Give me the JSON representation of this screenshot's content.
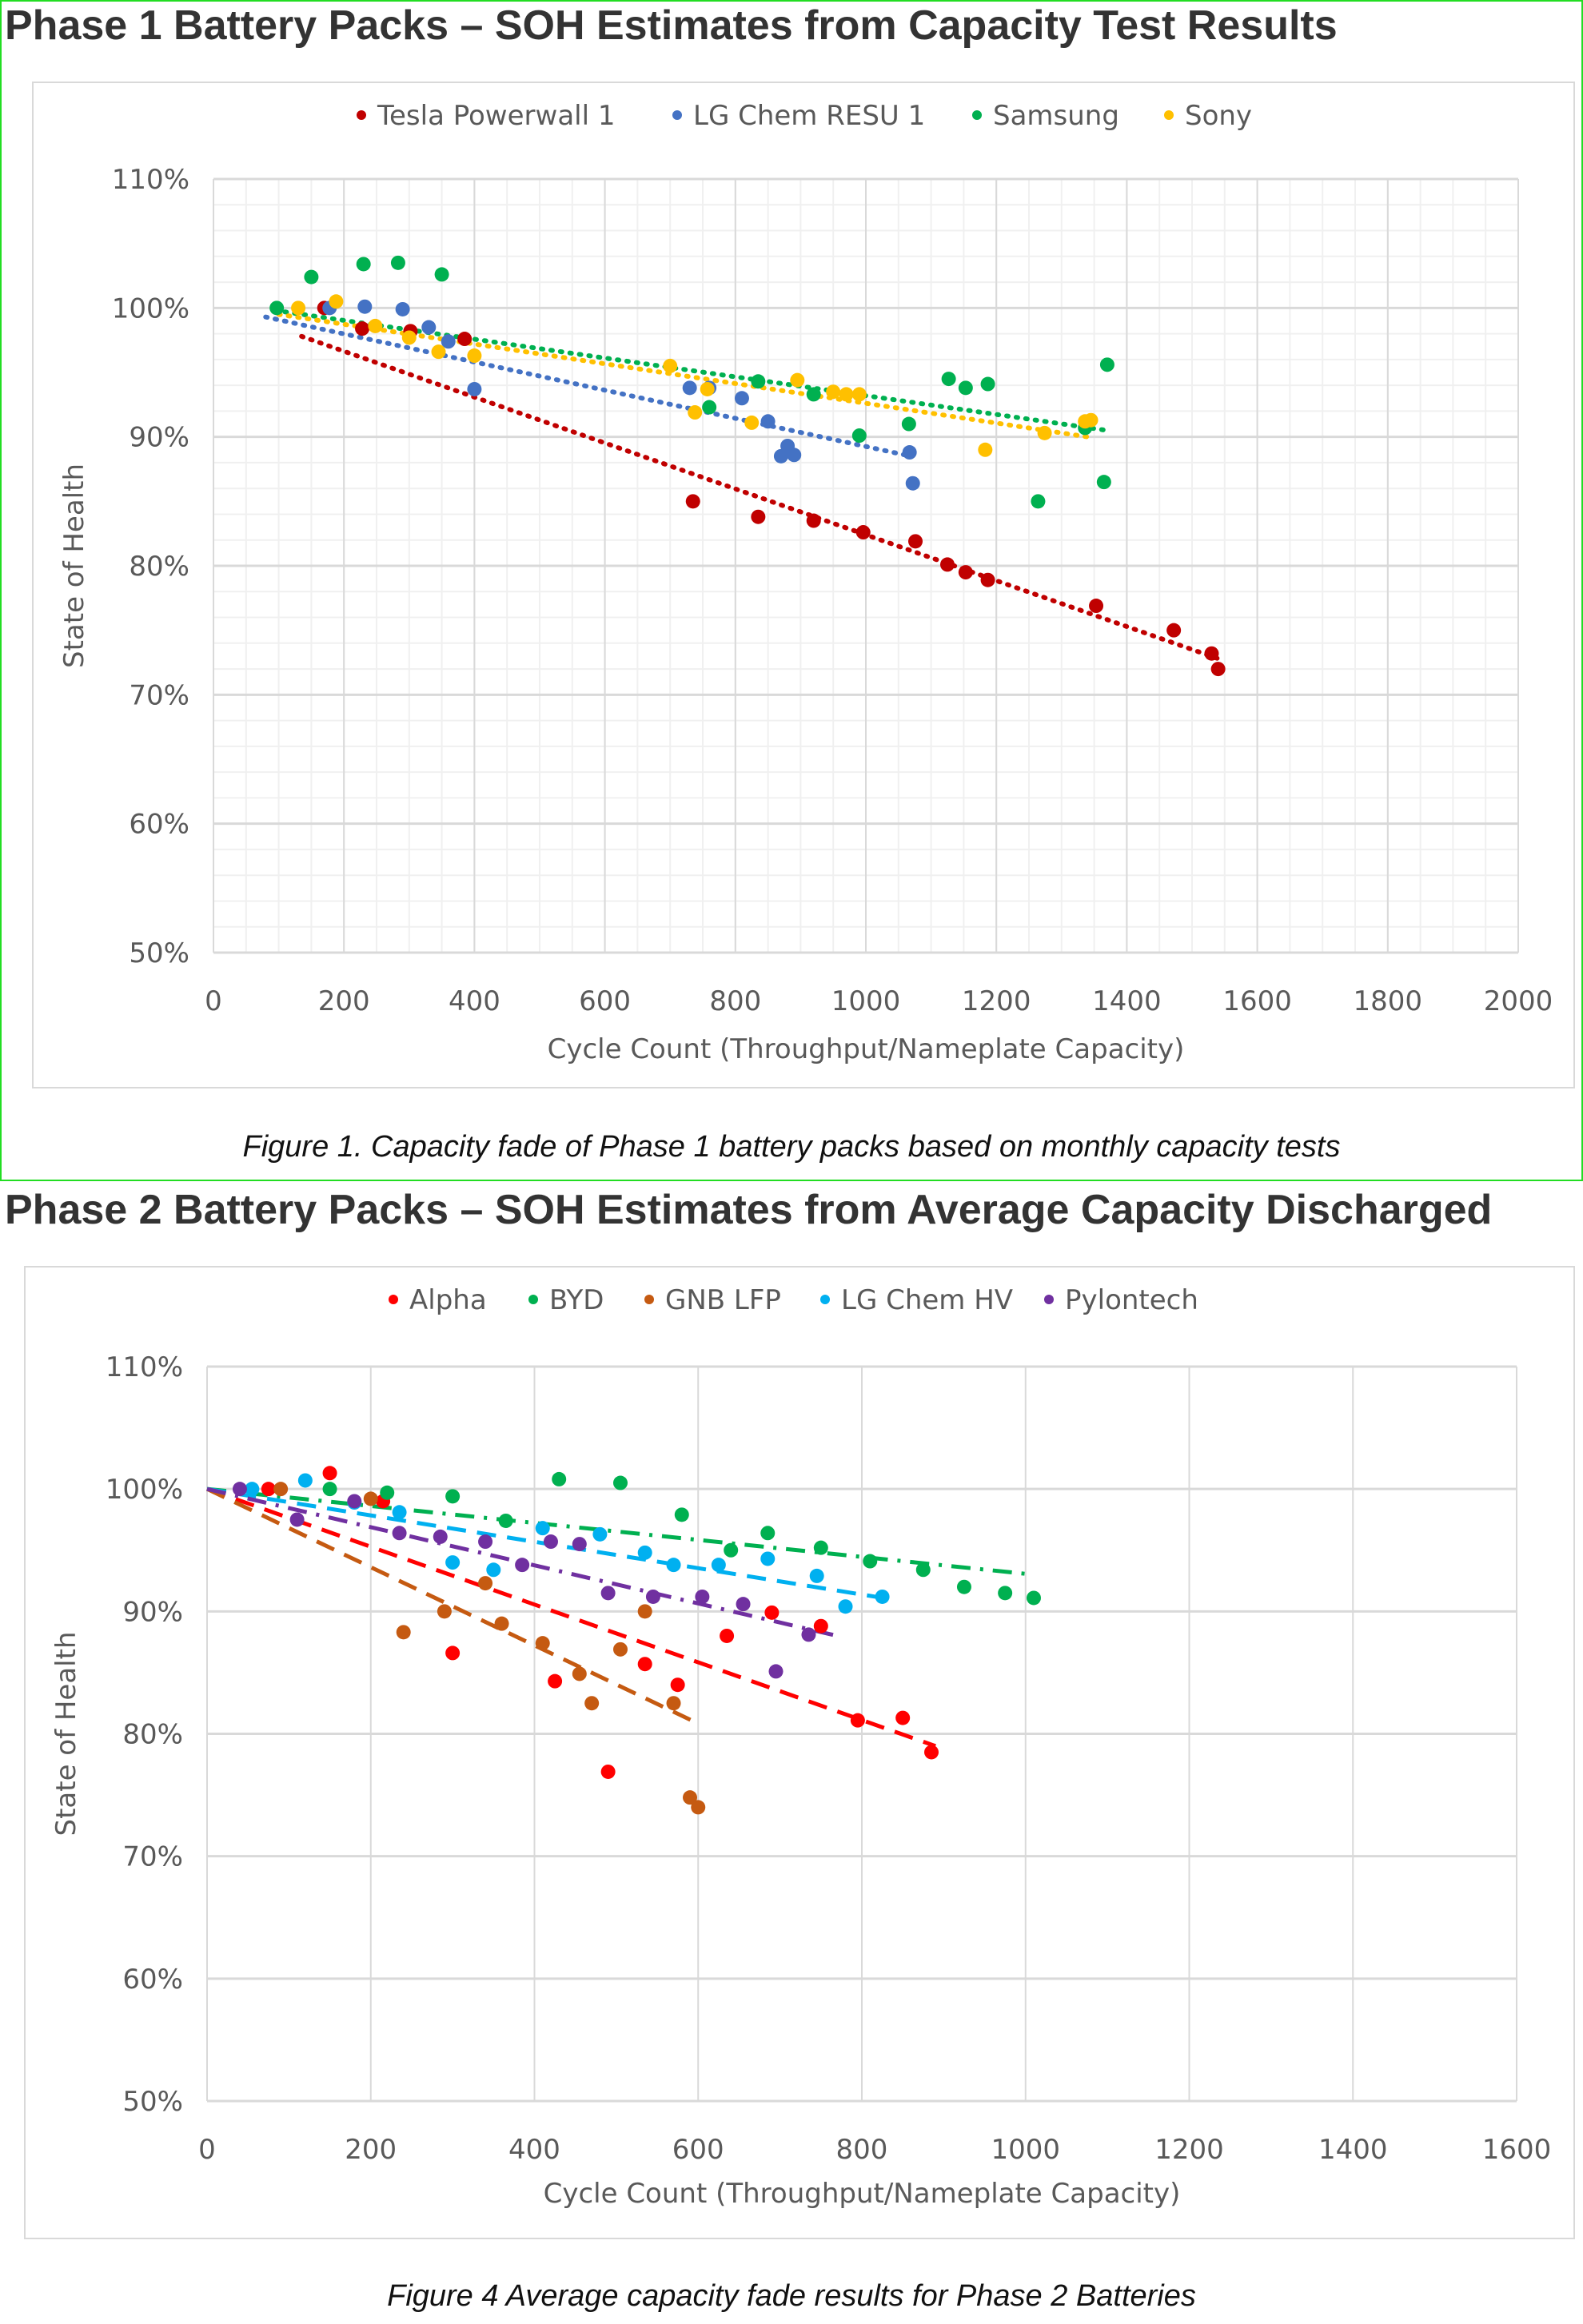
{
  "chart_data": [
    {
      "type": "scatter",
      "heading": "Phase 1 Battery Packs – SOH Estimates from Capacity Test Results",
      "caption": "Figure 1. Capacity fade of Phase 1 battery packs based on monthly capacity tests",
      "title": "",
      "xlabel": "Cycle Count (Throughput/Nameplate  Capacity)",
      "ylabel": "State of Health",
      "xlim": [
        0,
        2000
      ],
      "ylim": [
        50,
        110
      ],
      "xticks": [
        0,
        200,
        400,
        600,
        800,
        1000,
        1200,
        1400,
        1600,
        1800,
        2000
      ],
      "yticks": [
        50,
        60,
        70,
        80,
        90,
        100,
        110
      ],
      "ytick_labels": [
        "50%",
        "60%",
        "70%",
        "80%",
        "90%",
        "100%",
        "110%"
      ],
      "grid": true,
      "legend": "top",
      "trendline_style": "dotted",
      "series": [
        {
          "name": "Tesla Powerwall 1",
          "color": "#c00000",
          "points": [
            [
              170,
              100
            ],
            [
              228,
              98.4
            ],
            [
              302,
              98.2
            ],
            [
              385,
              97.6
            ],
            [
              735,
              85
            ],
            [
              835,
              83.8
            ],
            [
              920,
              83.5
            ],
            [
              996,
              82.6
            ],
            [
              1076,
              81.9
            ],
            [
              1125,
              80.1
            ],
            [
              1153,
              79.5
            ],
            [
              1187,
              78.9
            ],
            [
              1353,
              76.9
            ],
            [
              1472,
              75
            ],
            [
              1530,
              73.2
            ],
            [
              1540,
              72
            ]
          ],
          "trend": [
            [
              135,
              97.8
            ],
            [
              1540,
              72.8
            ]
          ]
        },
        {
          "name": "LG Chem RESU 1",
          "color": "#4472c4",
          "points": [
            [
              178,
              100
            ],
            [
              232,
              100.1
            ],
            [
              290,
              99.9
            ],
            [
              330,
              98.5
            ],
            [
              360,
              97.4
            ],
            [
              400,
              93.7
            ],
            [
              730,
              93.8
            ],
            [
              760,
              93.8
            ],
            [
              810,
              93
            ],
            [
              850,
              91.2
            ],
            [
              870,
              88.5
            ],
            [
              880,
              89.3
            ],
            [
              890,
              88.6
            ],
            [
              1067,
              88.8
            ],
            [
              1072,
              86.4
            ]
          ],
          "trend": [
            [
              80,
              99.3
            ],
            [
              1060,
              88.6
            ]
          ]
        },
        {
          "name": "Samsung",
          "color": "#00b050",
          "points": [
            [
              97,
              100
            ],
            [
              150,
              102.4
            ],
            [
              230,
              103.4
            ],
            [
              283,
              103.5
            ],
            [
              350,
              102.6
            ],
            [
              760,
              92.3
            ],
            [
              835,
              94.3
            ],
            [
              920,
              93.3
            ],
            [
              990,
              90.1
            ],
            [
              1066,
              91
            ],
            [
              1127,
              94.5
            ],
            [
              1153,
              93.8
            ],
            [
              1187,
              94.1
            ],
            [
              1264,
              85
            ],
            [
              1336,
              90.7
            ],
            [
              1365,
              86.5
            ],
            [
              1370,
              95.6
            ]
          ],
          "trend": [
            [
              95,
              99.8
            ],
            [
              1370,
              90.5
            ]
          ]
        },
        {
          "name": "Sony",
          "color": "#ffc000",
          "points": [
            [
              130,
              100
            ],
            [
              188,
              100.5
            ],
            [
              248,
              98.6
            ],
            [
              300,
              97.7
            ],
            [
              345,
              96.6
            ],
            [
              400,
              96.3
            ],
            [
              700,
              95.5
            ],
            [
              738,
              91.9
            ],
            [
              757,
              93.7
            ],
            [
              825,
              91.1
            ],
            [
              895,
              94.4
            ],
            [
              950,
              93.5
            ],
            [
              970,
              93.3
            ],
            [
              990,
              93.3
            ],
            [
              1183,
              89
            ],
            [
              1274,
              90.3
            ],
            [
              1336,
              91.2
            ],
            [
              1345,
              91.3
            ]
          ],
          "trend": [
            [
              100,
              99.5
            ],
            [
              1340,
              90
            ]
          ]
        }
      ]
    },
    {
      "type": "scatter",
      "heading": "Phase 2 Battery Packs – SOH Estimates from Average Capacity Discharged",
      "caption": "Figure 4 Average capacity fade results for Phase 2 Batteries",
      "title": "",
      "xlabel": "Cycle Count (Throughput/Nameplate Capacity)",
      "ylabel": "State of Health",
      "xlim": [
        0,
        1600
      ],
      "ylim": [
        50,
        110
      ],
      "xticks": [
        0,
        200,
        400,
        600,
        800,
        1000,
        1200,
        1400,
        1600
      ],
      "yticks": [
        50,
        60,
        70,
        80,
        90,
        100,
        110
      ],
      "ytick_labels": [
        "50%",
        "60%",
        "70%",
        "80%",
        "90%",
        "100%",
        "110%"
      ],
      "grid": true,
      "legend": "top",
      "series": [
        {
          "name": "Alpha",
          "color": "#ff0000",
          "trend_style": "dashed",
          "points": [
            [
              75,
              100
            ],
            [
              150,
              101.3
            ],
            [
              215,
              99
            ],
            [
              300,
              86.6
            ],
            [
              425,
              84.3
            ],
            [
              490,
              76.9
            ],
            [
              535,
              85.7
            ],
            [
              575,
              84
            ],
            [
              635,
              88
            ],
            [
              690,
              89.9
            ],
            [
              750,
              88.8
            ],
            [
              795,
              81.1
            ],
            [
              850,
              81.3
            ],
            [
              885,
              78.5
            ]
          ],
          "trend": [
            [
              0,
              100
            ],
            [
              890,
              79
            ]
          ]
        },
        {
          "name": "BYD",
          "color": "#00b050",
          "trend_style": "dashdot",
          "points": [
            [
              150,
              100
            ],
            [
              220,
              99.7
            ],
            [
              300,
              99.4
            ],
            [
              365,
              97.4
            ],
            [
              430,
              100.8
            ],
            [
              505,
              100.5
            ],
            [
              580,
              97.9
            ],
            [
              640,
              95
            ],
            [
              685,
              96.4
            ],
            [
              750,
              95.2
            ],
            [
              810,
              94.1
            ],
            [
              875,
              93.4
            ],
            [
              925,
              92
            ],
            [
              975,
              91.5
            ],
            [
              1010,
              91.1
            ]
          ],
          "trend": [
            [
              0,
              100
            ],
            [
              1010,
              93
            ]
          ]
        },
        {
          "name": "GNB LFP",
          "color": "#c55a11",
          "trend_style": "dashed",
          "points": [
            [
              90,
              100
            ],
            [
              200,
              99.2
            ],
            [
              240,
              88.3
            ],
            [
              290,
              90
            ],
            [
              340,
              92.3
            ],
            [
              360,
              89
            ],
            [
              410,
              87.4
            ],
            [
              455,
              84.9
            ],
            [
              470,
              82.5
            ],
            [
              505,
              86.9
            ],
            [
              535,
              90
            ],
            [
              570,
              82.5
            ],
            [
              590,
              74.8
            ],
            [
              600,
              74
            ]
          ],
          "trend": [
            [
              0,
              100
            ],
            [
              595,
              81
            ]
          ]
        },
        {
          "name": "LG Chem HV",
          "color": "#00b0f0",
          "trend_style": "dashed",
          "points": [
            [
              55,
              100
            ],
            [
              120,
              100.7
            ],
            [
              180,
              98.9
            ],
            [
              235,
              98.1
            ],
            [
              300,
              94
            ],
            [
              350,
              93.4
            ],
            [
              410,
              96.8
            ],
            [
              480,
              96.3
            ],
            [
              535,
              94.8
            ],
            [
              570,
              93.8
            ],
            [
              625,
              93.8
            ],
            [
              685,
              94.3
            ],
            [
              745,
              92.9
            ],
            [
              780,
              90.4
            ],
            [
              825,
              91.2
            ]
          ],
          "trend": [
            [
              0,
              100
            ],
            [
              835,
              91
            ]
          ]
        },
        {
          "name": "Pylontech",
          "color": "#7030a0",
          "trend_style": "dashdot",
          "points": [
            [
              40,
              100
            ],
            [
              110,
              97.5
            ],
            [
              180,
              99
            ],
            [
              235,
              96.4
            ],
            [
              285,
              96.1
            ],
            [
              340,
              95.7
            ],
            [
              385,
              93.8
            ],
            [
              420,
              95.7
            ],
            [
              455,
              95.5
            ],
            [
              490,
              91.5
            ],
            [
              545,
              91.2
            ],
            [
              605,
              91.2
            ],
            [
              655,
              90.6
            ],
            [
              695,
              85.1
            ],
            [
              735,
              88.1
            ]
          ],
          "trend": [
            [
              0,
              100
            ],
            [
              770,
              88
            ]
          ]
        }
      ]
    }
  ]
}
